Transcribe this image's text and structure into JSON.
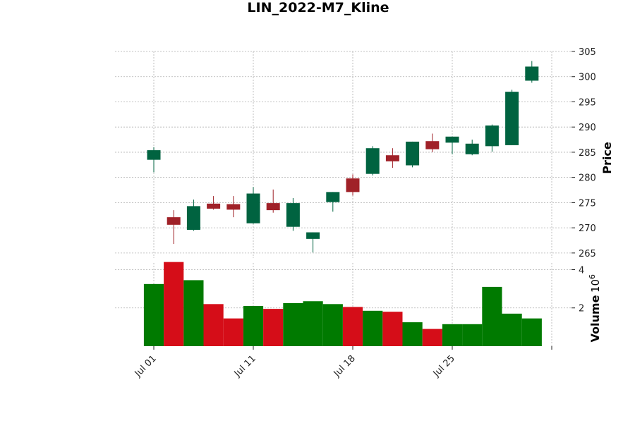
{
  "chart_data": {
    "type": "candlestick",
    "title": "LIN_2022-M7_Kline",
    "price_ylabel": "Price",
    "volume_ylabel": "Volume",
    "volume_exponent": "10",
    "volume_exponent_power": "6",
    "price_ylim": [
      264,
      305
    ],
    "price_ticks": [
      265,
      270,
      275,
      280,
      285,
      290,
      295,
      300,
      305
    ],
    "volume_ylim": [
      0,
      4.35
    ],
    "volume_ticks": [
      2,
      4
    ],
    "x_tick_labels": [
      {
        "index": 0,
        "label": "Jul 01"
      },
      {
        "index": 5,
        "label": "Jul 11"
      },
      {
        "index": 10,
        "label": "Jul 18"
      },
      {
        "index": 15,
        "label": "Jul 25"
      }
    ],
    "grid": true,
    "colors": {
      "up": "#006340",
      "down": "#a02128",
      "vol_up": "#007a00",
      "vol_down": "#d50d18"
    },
    "candles": [
      {
        "open": 283.5,
        "high": 286.0,
        "low": 281.0,
        "close": 285.4,
        "volume": 3.25
      },
      {
        "open": 272.1,
        "high": 273.5,
        "low": 266.8,
        "close": 270.6,
        "volume": 4.4
      },
      {
        "open": 269.6,
        "high": 275.6,
        "low": 269.4,
        "close": 274.3,
        "volume": 3.45
      },
      {
        "open": 274.8,
        "high": 276.3,
        "low": 273.6,
        "close": 273.8,
        "volume": 2.2
      },
      {
        "open": 274.7,
        "high": 276.3,
        "low": 272.1,
        "close": 273.6,
        "volume": 1.45
      },
      {
        "open": 270.9,
        "high": 278.1,
        "low": 270.8,
        "close": 276.8,
        "volume": 2.1
      },
      {
        "open": 274.9,
        "high": 277.6,
        "low": 273.0,
        "close": 273.5,
        "volume": 1.95
      },
      {
        "open": 270.2,
        "high": 275.9,
        "low": 269.4,
        "close": 274.9,
        "volume": 2.25
      },
      {
        "open": 267.8,
        "high": 269.1,
        "low": 265.1,
        "close": 269.1,
        "volume": 2.35
      },
      {
        "open": 275.1,
        "high": 277.1,
        "low": 273.2,
        "close": 277.1,
        "volume": 2.2
      },
      {
        "open": 279.8,
        "high": 280.6,
        "low": 276.4,
        "close": 277.1,
        "volume": 2.05
      },
      {
        "open": 280.7,
        "high": 286.2,
        "low": 280.4,
        "close": 285.8,
        "volume": 1.85
      },
      {
        "open": 284.4,
        "high": 285.8,
        "low": 281.9,
        "close": 283.2,
        "volume": 1.8
      },
      {
        "open": 282.4,
        "high": 287.1,
        "low": 282.0,
        "close": 287.1,
        "volume": 1.25
      },
      {
        "open": 287.2,
        "high": 288.7,
        "low": 285.0,
        "close": 285.6,
        "volume": 0.9
      },
      {
        "open": 286.9,
        "high": 288.1,
        "low": 284.6,
        "close": 288.1,
        "volume": 1.15
      },
      {
        "open": 284.6,
        "high": 287.5,
        "low": 284.4,
        "close": 286.7,
        "volume": 1.15
      },
      {
        "open": 286.2,
        "high": 290.5,
        "low": 285.1,
        "close": 290.3,
        "volume": 3.1
      },
      {
        "open": 286.4,
        "high": 297.4,
        "low": 286.4,
        "close": 297.0,
        "volume": 1.7
      },
      {
        "open": 299.2,
        "high": 303.1,
        "low": 298.8,
        "close": 302.0,
        "volume": 1.45
      }
    ]
  }
}
